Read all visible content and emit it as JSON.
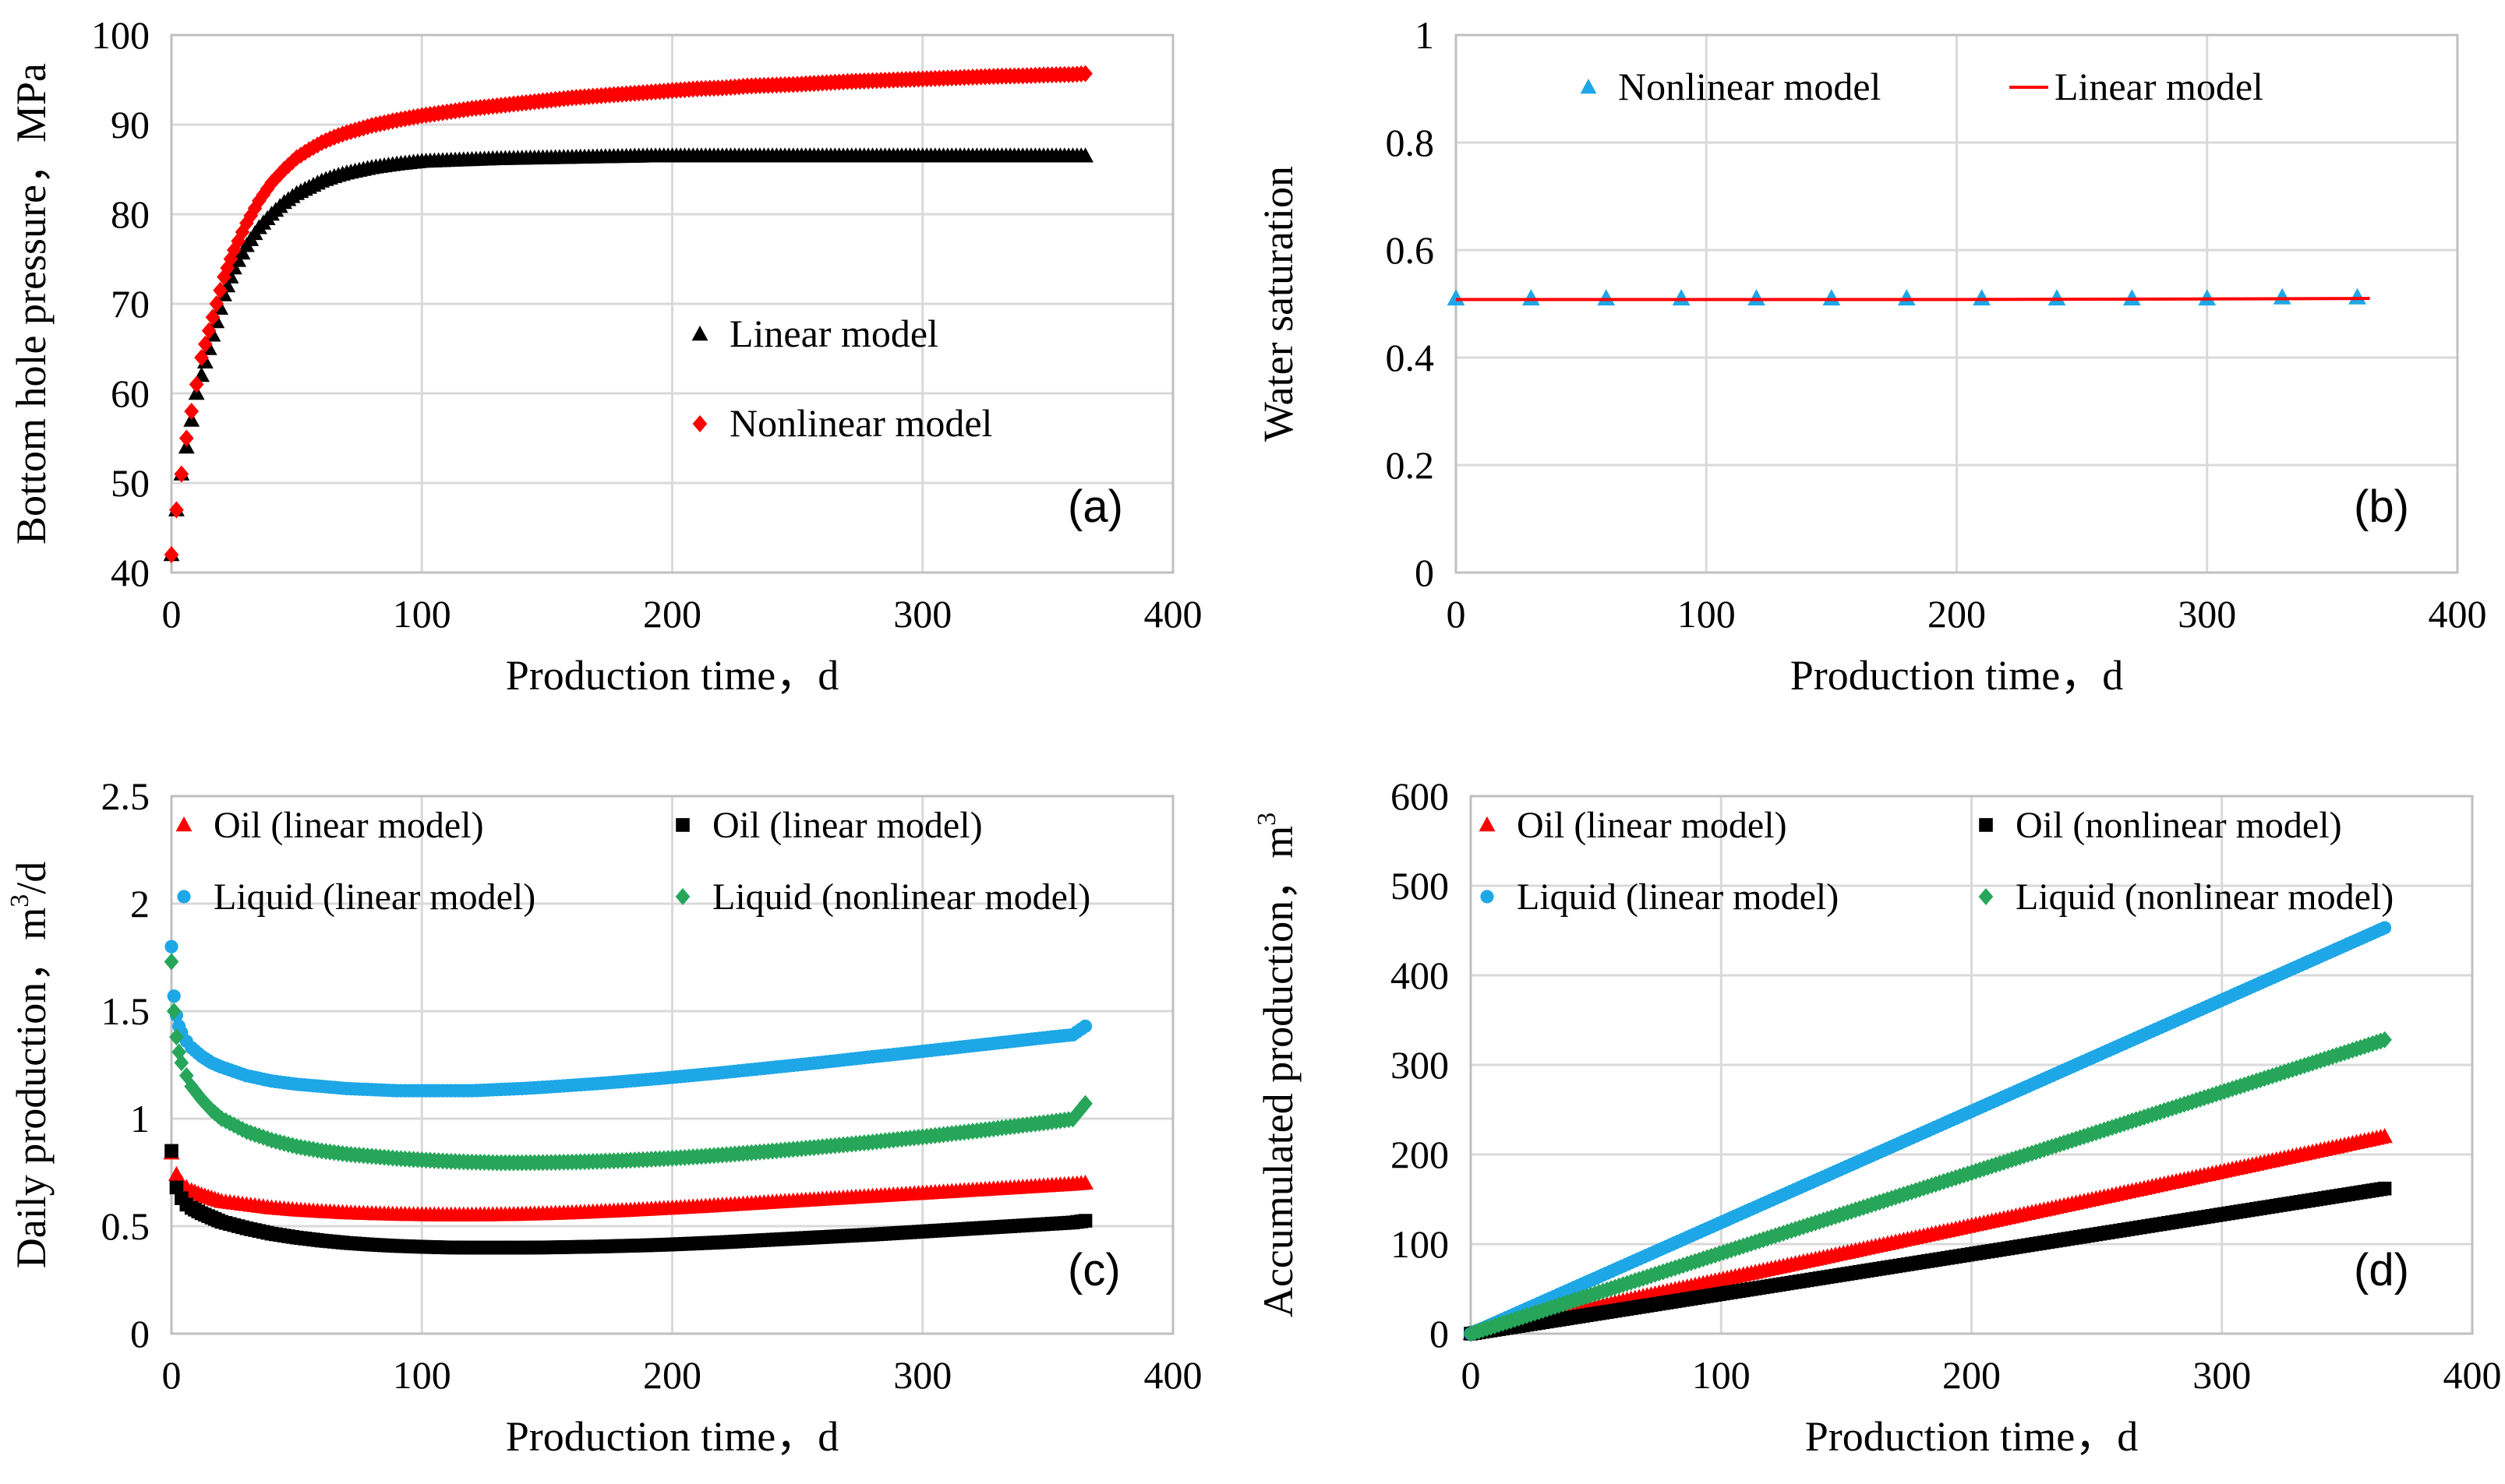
{
  "figure": {
    "panels": [
      "a",
      "b",
      "c",
      "d"
    ]
  },
  "chart_data": [
    {
      "id": "a",
      "type": "scatter",
      "panel_label": "(a)",
      "title": "",
      "xlabel": "Production time，d",
      "ylabel": "Bottom hole pressure，MPa",
      "xlim": [
        0,
        400
      ],
      "ylim": [
        40,
        100
      ],
      "xticks": [
        0,
        100,
        200,
        300,
        400
      ],
      "yticks": [
        40,
        50,
        60,
        70,
        80,
        90,
        100
      ],
      "grid": true,
      "legend_position": "center-right",
      "series": [
        {
          "name": "Linear model",
          "marker": "triangle",
          "color": "#000000",
          "x": [
            0,
            2,
            4,
            6,
            8,
            10,
            12,
            15,
            18,
            21,
            25,
            30,
            35,
            40,
            45,
            50,
            55,
            60,
            65,
            70,
            80,
            90,
            100,
            110,
            120,
            130,
            140,
            150,
            160,
            170,
            180,
            190,
            200,
            210,
            220,
            230,
            240,
            250,
            260,
            270,
            280,
            290,
            300,
            310,
            320,
            330,
            340,
            350,
            360,
            365
          ],
          "y": [
            42,
            47,
            51,
            54,
            57,
            60,
            62,
            65,
            68,
            71,
            74,
            76.5,
            78.5,
            80,
            81.3,
            82.3,
            83,
            83.7,
            84.2,
            84.6,
            85.2,
            85.6,
            85.9,
            86,
            86.1,
            86.2,
            86.25,
            86.3,
            86.35,
            86.4,
            86.45,
            86.5,
            86.5,
            86.5,
            86.5,
            86.5,
            86.5,
            86.5,
            86.5,
            86.5,
            86.5,
            86.5,
            86.5,
            86.5,
            86.5,
            86.5,
            86.5,
            86.5,
            86.5,
            86.5
          ]
        },
        {
          "name": "Nonlinear model",
          "marker": "diamond",
          "color": "#ff0000",
          "x": [
            0,
            2,
            4,
            6,
            8,
            10,
            12,
            15,
            18,
            21,
            25,
            30,
            35,
            40,
            45,
            50,
            55,
            60,
            65,
            70,
            80,
            90,
            100,
            110,
            120,
            130,
            140,
            150,
            160,
            170,
            180,
            190,
            200,
            210,
            220,
            230,
            240,
            250,
            260,
            270,
            280,
            290,
            300,
            310,
            320,
            330,
            340,
            350,
            360,
            365
          ],
          "y": [
            42,
            47,
            51,
            55,
            58,
            61,
            64,
            67,
            70,
            73,
            76,
            79,
            81.5,
            83.5,
            85,
            86.3,
            87.2,
            88,
            88.6,
            89.1,
            89.9,
            90.5,
            91,
            91.4,
            91.8,
            92.1,
            92.4,
            92.7,
            93,
            93.2,
            93.4,
            93.6,
            93.8,
            94,
            94.1,
            94.3,
            94.4,
            94.5,
            94.65,
            94.8,
            94.9,
            95,
            95.1,
            95.2,
            95.3,
            95.4,
            95.45,
            95.55,
            95.6,
            95.7
          ]
        }
      ]
    },
    {
      "id": "b",
      "type": "line",
      "panel_label": "(b)",
      "title": "",
      "xlabel": "Production time，d",
      "ylabel": "Water saturation",
      "xlim": [
        0,
        400
      ],
      "ylim": [
        0,
        1
      ],
      "xticks": [
        0,
        100,
        200,
        300,
        400
      ],
      "yticks": [
        0,
        0.2,
        0.4,
        0.6,
        0.8,
        1
      ],
      "grid": true,
      "legend_position": "top",
      "series": [
        {
          "name": "Nonlinear model",
          "marker": "triangle",
          "color": "#1ea7e6",
          "x": [
            0,
            30,
            60,
            90,
            120,
            150,
            180,
            210,
            240,
            270,
            300,
            330,
            360
          ],
          "y": [
            0.51,
            0.51,
            0.51,
            0.51,
            0.51,
            0.51,
            0.51,
            0.51,
            0.51,
            0.51,
            0.51,
            0.512,
            0.512
          ]
        },
        {
          "name": "Linear model",
          "marker": "line",
          "color": "#ff0000",
          "x": [
            0,
            100,
            200,
            300,
            365
          ],
          "y": [
            0.508,
            0.508,
            0.508,
            0.509,
            0.51
          ]
        }
      ]
    },
    {
      "id": "c",
      "type": "scatter",
      "panel_label": "(c)",
      "title": "",
      "xlabel": "Production time，d",
      "ylabel": "Daily production，m3/d",
      "ylabel_main": "Daily production，m",
      "ylabel_sup": "3",
      "ylabel_tail": "/d",
      "xlim": [
        0,
        400
      ],
      "ylim": [
        0,
        2.5
      ],
      "xticks": [
        0,
        100,
        200,
        300,
        400
      ],
      "yticks": [
        0,
        0.5,
        1,
        1.5,
        2,
        2.5
      ],
      "ytick_labels": [
        "0",
        "0.5",
        "1",
        "1.5",
        "2",
        "2.5"
      ],
      "grid": true,
      "legend_position": "top",
      "series": [
        {
          "name": "Oil (linear model)",
          "marker": "triangle",
          "color": "#ff0000",
          "x": [
            0,
            2,
            4,
            6,
            8,
            12,
            16,
            20,
            30,
            40,
            50,
            60,
            70,
            80,
            90,
            100,
            110,
            120,
            130,
            140,
            150,
            160,
            170,
            180,
            190,
            200,
            210,
            220,
            230,
            240,
            250,
            260,
            270,
            280,
            290,
            300,
            310,
            320,
            330,
            340,
            350,
            360,
            365
          ],
          "y": [
            0.84,
            0.74,
            0.7,
            0.68,
            0.665,
            0.645,
            0.63,
            0.615,
            0.6,
            0.585,
            0.575,
            0.568,
            0.562,
            0.558,
            0.555,
            0.553,
            0.552,
            0.552,
            0.553,
            0.555,
            0.558,
            0.562,
            0.567,
            0.572,
            0.578,
            0.584,
            0.59,
            0.597,
            0.604,
            0.611,
            0.618,
            0.625,
            0.632,
            0.639,
            0.646,
            0.653,
            0.66,
            0.667,
            0.674,
            0.681,
            0.688,
            0.695,
            0.7
          ]
        },
        {
          "name": "Oil (linear model)",
          "marker": "square",
          "color": "#000000",
          "x": [
            0,
            2,
            4,
            6,
            8,
            12,
            16,
            20,
            30,
            40,
            50,
            60,
            70,
            80,
            90,
            100,
            110,
            120,
            130,
            140,
            150,
            160,
            170,
            180,
            190,
            200,
            210,
            220,
            230,
            240,
            250,
            260,
            270,
            280,
            290,
            300,
            310,
            320,
            330,
            340,
            350,
            360,
            365
          ],
          "y": [
            0.85,
            0.68,
            0.63,
            0.6,
            0.585,
            0.56,
            0.54,
            0.52,
            0.49,
            0.465,
            0.447,
            0.433,
            0.422,
            0.414,
            0.408,
            0.404,
            0.401,
            0.4,
            0.4,
            0.4,
            0.401,
            0.403,
            0.405,
            0.408,
            0.411,
            0.415,
            0.42,
            0.425,
            0.431,
            0.437,
            0.443,
            0.449,
            0.455,
            0.461,
            0.468,
            0.475,
            0.482,
            0.489,
            0.496,
            0.503,
            0.51,
            0.517,
            0.525
          ]
        },
        {
          "name": "Liquid (linear model)",
          "marker": "circle",
          "color": "#1ea7e6",
          "x": [
            0,
            1,
            2,
            3,
            4,
            6,
            8,
            12,
            16,
            20,
            30,
            40,
            50,
            60,
            70,
            80,
            90,
            100,
            110,
            120,
            130,
            140,
            150,
            160,
            170,
            180,
            190,
            200,
            210,
            220,
            230,
            240,
            250,
            260,
            270,
            280,
            290,
            300,
            310,
            320,
            330,
            340,
            350,
            360,
            365
          ],
          "y": [
            1.8,
            1.57,
            1.48,
            1.43,
            1.4,
            1.36,
            1.33,
            1.29,
            1.26,
            1.24,
            1.2,
            1.175,
            1.16,
            1.15,
            1.14,
            1.135,
            1.13,
            1.13,
            1.13,
            1.13,
            1.135,
            1.14,
            1.147,
            1.155,
            1.163,
            1.172,
            1.182,
            1.192,
            1.203,
            1.214,
            1.226,
            1.238,
            1.25,
            1.262,
            1.275,
            1.288,
            1.3,
            1.313,
            1.326,
            1.339,
            1.352,
            1.365,
            1.378,
            1.39,
            1.43
          ]
        },
        {
          "name": "Liquid (nonlinear model)",
          "marker": "diamond",
          "color": "#27a65a",
          "x": [
            0,
            1,
            2,
            3,
            4,
            6,
            8,
            12,
            16,
            20,
            30,
            40,
            50,
            60,
            70,
            80,
            90,
            100,
            110,
            120,
            130,
            140,
            150,
            160,
            170,
            180,
            190,
            200,
            210,
            220,
            230,
            240,
            250,
            260,
            270,
            280,
            290,
            300,
            310,
            320,
            330,
            340,
            350,
            360,
            365
          ],
          "y": [
            1.73,
            1.5,
            1.38,
            1.31,
            1.26,
            1.2,
            1.15,
            1.09,
            1.04,
            1.0,
            0.94,
            0.9,
            0.87,
            0.85,
            0.835,
            0.825,
            0.815,
            0.808,
            0.802,
            0.798,
            0.795,
            0.795,
            0.796,
            0.798,
            0.801,
            0.805,
            0.81,
            0.816,
            0.823,
            0.831,
            0.84,
            0.849,
            0.859,
            0.869,
            0.88,
            0.891,
            0.903,
            0.915,
            0.928,
            0.941,
            0.955,
            0.969,
            0.983,
            0.998,
            1.07
          ]
        }
      ]
    },
    {
      "id": "d",
      "type": "scatter",
      "panel_label": "(d)",
      "title": "",
      "xlabel": "Production time，d",
      "ylabel": "Accumulated production，m3",
      "ylabel_main": "Accumulated production，m",
      "ylabel_sup": "3",
      "ylabel_tail": "",
      "xlim": [
        0,
        400
      ],
      "ylim": [
        0,
        600
      ],
      "xticks": [
        0,
        100,
        200,
        300,
        400
      ],
      "yticks": [
        0,
        100,
        200,
        300,
        400,
        500,
        600
      ],
      "grid": true,
      "legend_position": "top",
      "series": [
        {
          "name": "Oil (linear model)",
          "marker": "triangle",
          "color": "#ff0000",
          "x": [
            0,
            365
          ],
          "y": [
            0,
            220
          ]
        },
        {
          "name": "Oil (nonlinear model)",
          "marker": "square",
          "color": "#000000",
          "x": [
            0,
            365
          ],
          "y": [
            0,
            162
          ]
        },
        {
          "name": "Liquid (linear model)",
          "marker": "circle",
          "color": "#1ea7e6",
          "x": [
            0,
            365
          ],
          "y": [
            0,
            453
          ]
        },
        {
          "name": "Liquid (nonlinear model)",
          "marker": "diamond",
          "color": "#27a65a",
          "x": [
            0,
            365
          ],
          "y": [
            0,
            328
          ]
        }
      ]
    }
  ]
}
